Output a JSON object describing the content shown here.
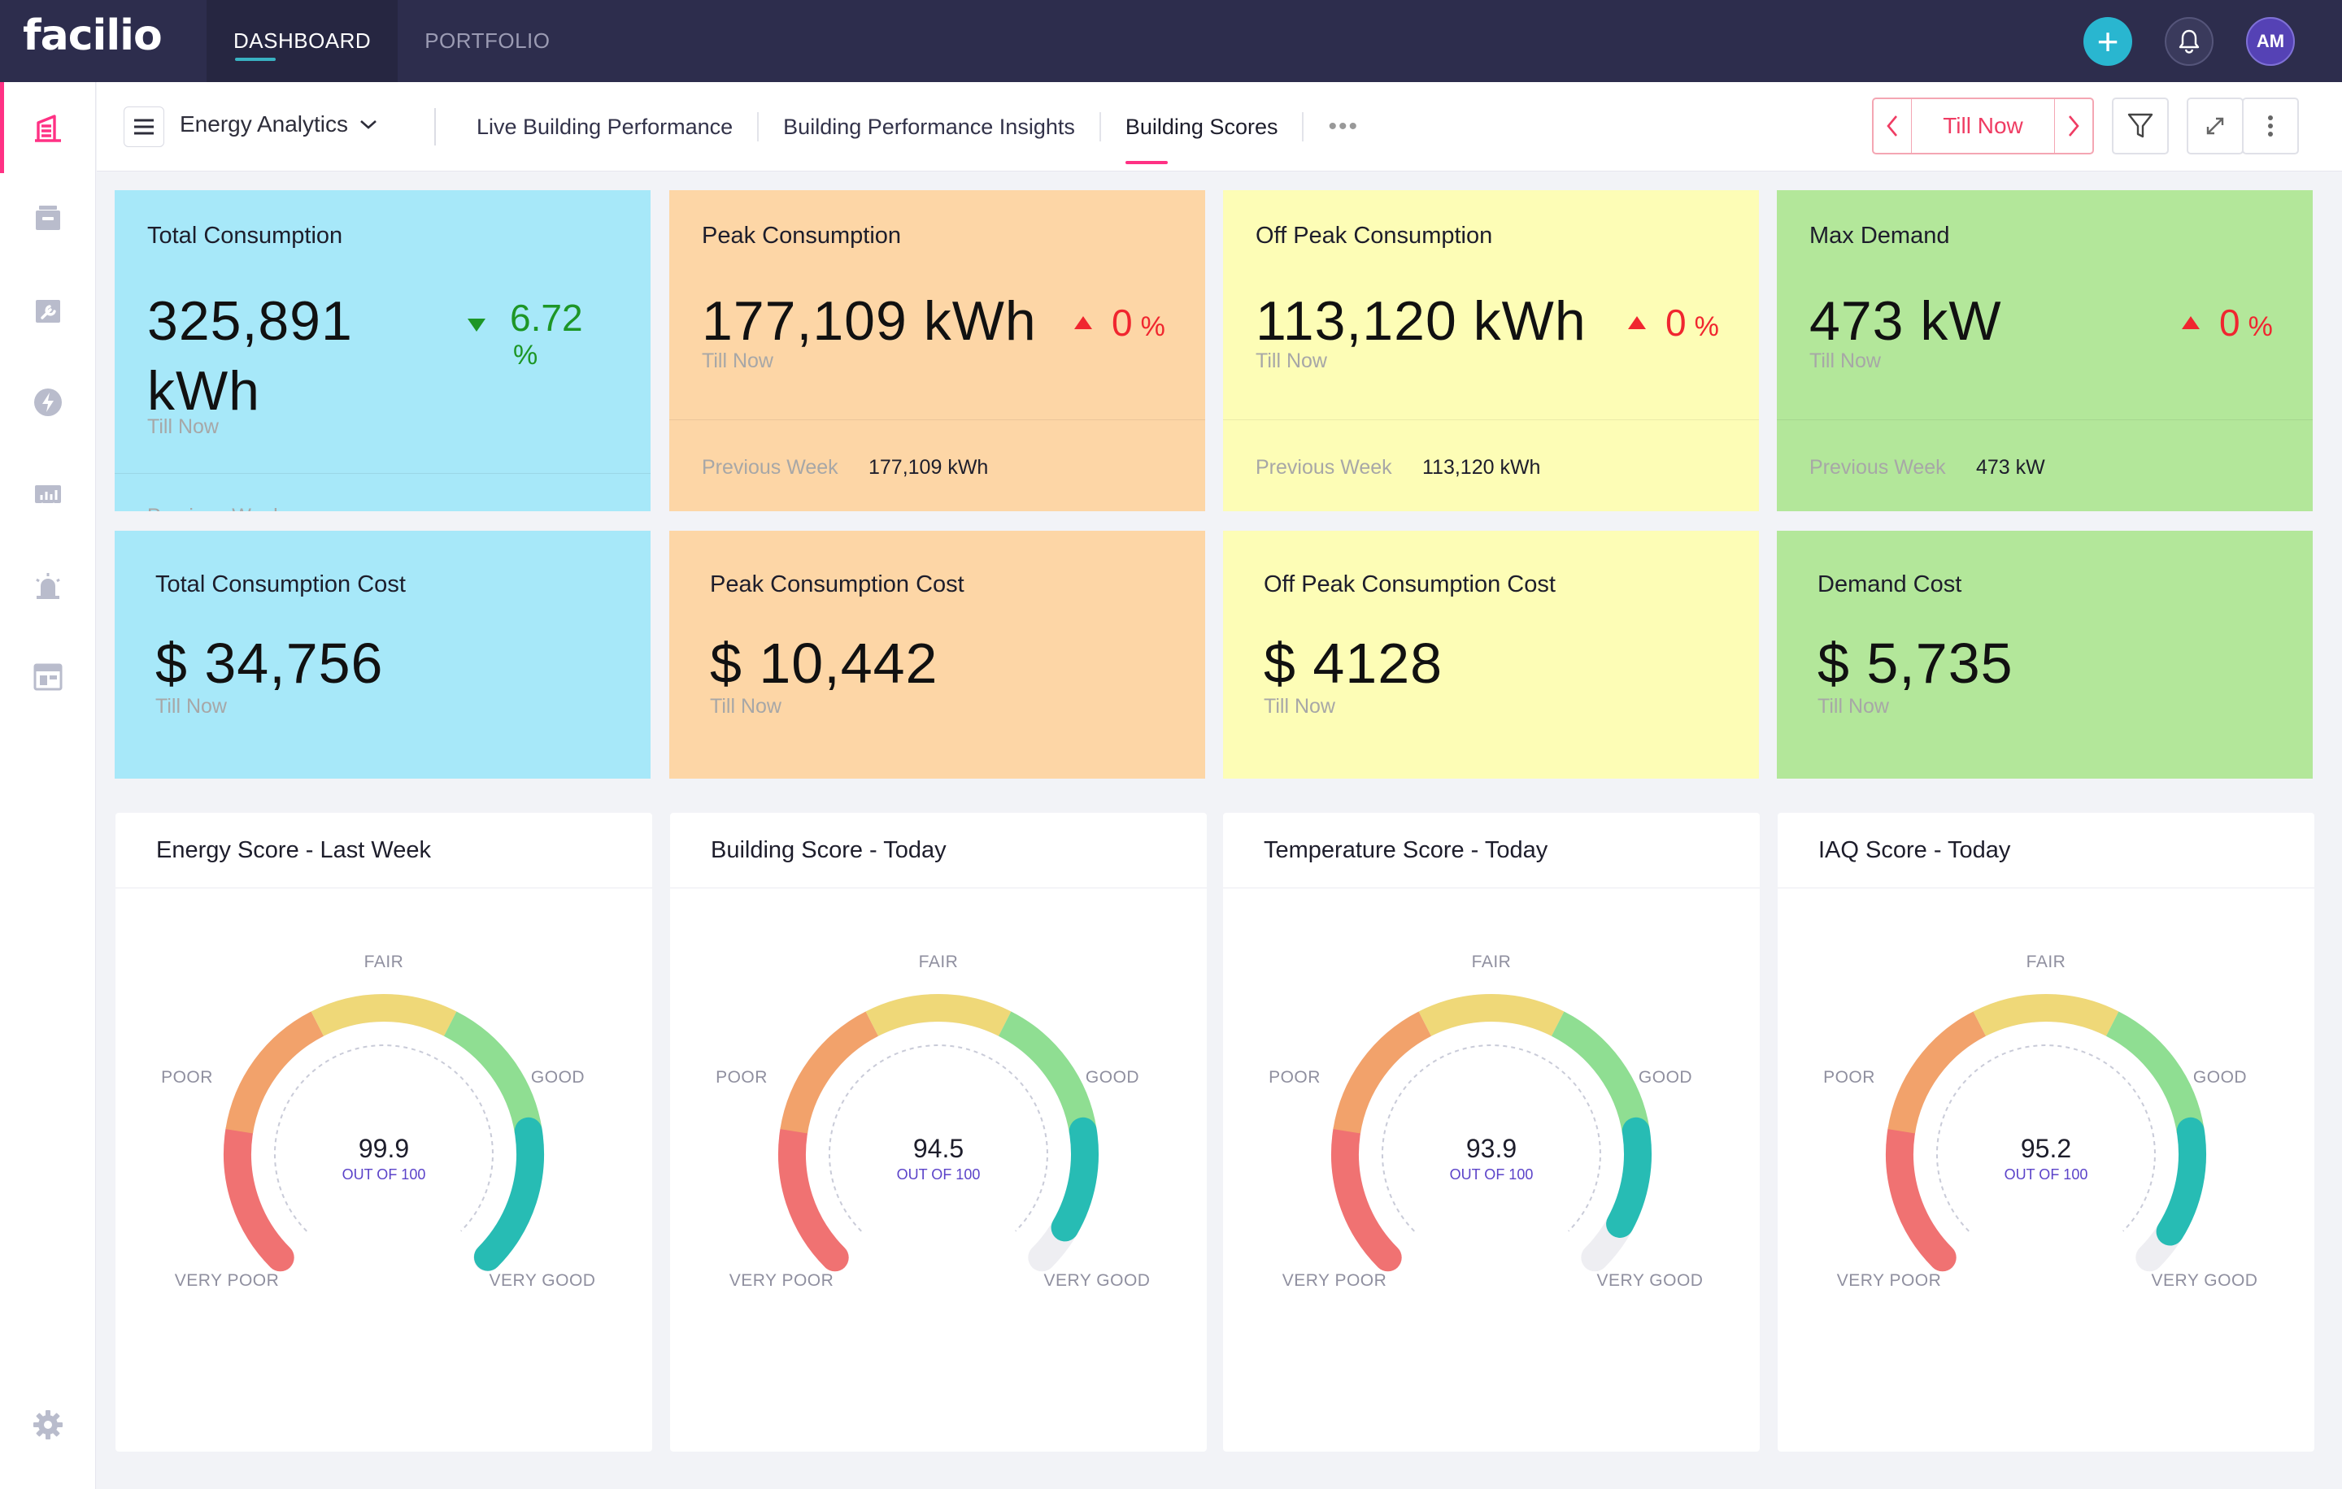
{
  "app": {
    "logo": "facilio"
  },
  "topnav": {
    "items": [
      {
        "label": "DASHBOARD"
      },
      {
        "label": "PORTFOLIO"
      }
    ]
  },
  "topright": {
    "plus": "+",
    "avatar_initials": "AM"
  },
  "subheader": {
    "title": "Energy Analytics",
    "tabs": [
      {
        "label": "Live Building Performance"
      },
      {
        "label": "Building Performance Insights"
      },
      {
        "label": "Building Scores"
      },
      {
        "label": "•••"
      }
    ],
    "active_tab": "Building Scores",
    "date_label": "Till Now"
  },
  "kpis": [
    {
      "title": "Total Consumption",
      "value": "325,891 kWh",
      "sub": "Till Now",
      "delta": "6.72",
      "delta_unit": "%",
      "direction": "down",
      "prev_label": "Previous Week",
      "prev_value": "",
      "color": "#a7e8f9"
    },
    {
      "title": "Peak Consumption",
      "value": "177,109 kWh",
      "sub": "Till Now",
      "delta": "0",
      "delta_unit": "%",
      "direction": "up",
      "prev_label": "Previous Week",
      "prev_value": "177,109 kWh",
      "color": "#fdd6a6"
    },
    {
      "title": "Off Peak Consumption",
      "value": "113,120 kWh",
      "sub": "Till Now",
      "delta": "0",
      "delta_unit": "%",
      "direction": "up",
      "prev_label": "Previous Week",
      "prev_value": "113,120 kWh",
      "color": "#fdfdb6"
    },
    {
      "title": "Max Demand",
      "value": "473 kW",
      "sub": "Till Now",
      "delta": "0",
      "delta_unit": "%",
      "direction": "up",
      "prev_label": "Previous Week",
      "prev_value": "473 kW",
      "color": "#b3e79a"
    }
  ],
  "costs": [
    {
      "title": "Total Consumption Cost",
      "value": "$ 34,756",
      "sub": "Till Now"
    },
    {
      "title": "Peak Consumption Cost",
      "value": "$ 10,442",
      "sub": "Till Now"
    },
    {
      "title": "Off Peak Consumption Cost",
      "value": "$ 4128",
      "sub": "Till Now"
    },
    {
      "title": "Demand Cost",
      "value": "$ 5,735",
      "sub": "Till Now"
    }
  ],
  "gauge_labels": {
    "fair": "FAIR",
    "poor": "POOR",
    "good": "GOOD",
    "very_poor": "VERY POOR",
    "very_good": "VERY GOOD",
    "out_of": "OUT OF 100"
  },
  "scores": [
    {
      "title": "Energy Score - Last Week",
      "value": "99.9",
      "score": 99.9
    },
    {
      "title": "Building Score - Today",
      "value": "94.5",
      "score": 94.5
    },
    {
      "title": "Temperature Score - Today",
      "value": "93.9",
      "score": 93.9
    },
    {
      "title": "IAQ Score - Today",
      "value": "95.2",
      "score": 95.2
    }
  ],
  "colors": {
    "accent": "#ff3184",
    "topbar": "#2d2d4d",
    "teal": "#29b6d0",
    "date": "#ef3c63",
    "gauge_bands": [
      "#f07272",
      "#f2a26b",
      "#efd878",
      "#8fde92",
      "#27bcb4"
    ]
  },
  "icons": [
    "building-icon",
    "inbox-icon",
    "wrench-icon",
    "energy-icon",
    "board-icon",
    "alarm-icon",
    "dashboard-icon",
    "settings-icon"
  ]
}
